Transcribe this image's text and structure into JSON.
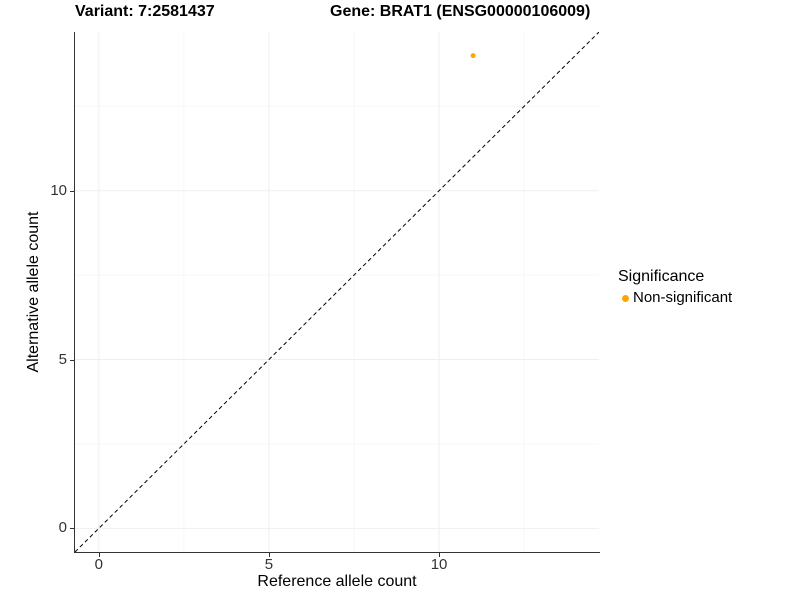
{
  "header": {
    "variant_title": "Variant: 7:2581437",
    "gene_title": "Gene: BRAT1 (ENSG00000106009)"
  },
  "legend": {
    "title": "Significance",
    "items": [
      {
        "label": "Non-significant",
        "color": "#FFA500"
      }
    ]
  },
  "chart_data": {
    "type": "scatter",
    "title": "Variant: 7:2581437 — Gene: BRAT1 (ENSG00000106009)",
    "xlabel": "Reference allele count",
    "ylabel": "Alternative allele count",
    "xlim": [
      -0.7,
      14.7
    ],
    "ylim": [
      -0.7,
      14.7
    ],
    "x_major_ticks": [
      0,
      5,
      10
    ],
    "y_major_ticks": [
      0,
      5,
      10
    ],
    "x_minor_ticks": [
      2.5,
      7.5,
      12.5
    ],
    "y_minor_ticks": [
      2.5,
      7.5,
      12.5
    ],
    "grid": true,
    "legend_position": "right",
    "series": [
      {
        "name": "Non-significant",
        "color": "#FFA500",
        "point_radius": 2.5,
        "points": [
          [
            11,
            14
          ]
        ]
      }
    ],
    "reference_line": {
      "type": "identity",
      "slope": 1,
      "intercept": 0,
      "style": "dashed",
      "color": "#000000"
    },
    "colors": {
      "axis_line": "#333333",
      "tick_text": "#333333",
      "grid_major": "#efefef",
      "grid_minor": "#f7f7f7"
    }
  }
}
